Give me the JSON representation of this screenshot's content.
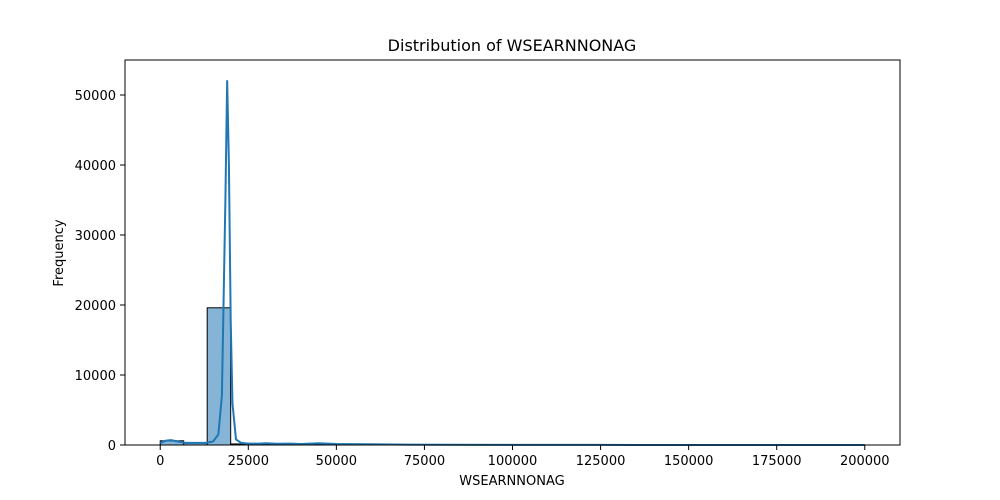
{
  "chart_data": {
    "type": "bar",
    "title": "Distribution of WSEARNNONAG",
    "xlabel": "WSEARNNONAG",
    "ylabel": "Frequency",
    "xlim": [
      -10000,
      210000
    ],
    "ylim": [
      0,
      55000
    ],
    "xticks": [
      0,
      25000,
      50000,
      75000,
      100000,
      125000,
      150000,
      175000,
      200000
    ],
    "yticks": [
      0,
      10000,
      20000,
      30000,
      40000,
      50000
    ],
    "grid": false,
    "bar_color": "#86b4d7",
    "line_color": "#1f77b4",
    "bins": [
      {
        "x0": 0,
        "x1": 6667,
        "count": 600
      },
      {
        "x0": 6667,
        "x1": 13333,
        "count": 300
      },
      {
        "x0": 13333,
        "x1": 20000,
        "count": 19600
      },
      {
        "x0": 20000,
        "x1": 26667,
        "count": 150
      },
      {
        "x0": 26667,
        "x1": 33333,
        "count": 120
      },
      {
        "x0": 33333,
        "x1": 40000,
        "count": 90
      },
      {
        "x0": 40000,
        "x1": 46667,
        "count": 80
      },
      {
        "x0": 46667,
        "x1": 53333,
        "count": 60
      },
      {
        "x0": 53333,
        "x1": 60000,
        "count": 40
      },
      {
        "x0": 60000,
        "x1": 66667,
        "count": 30
      },
      {
        "x0": 66667,
        "x1": 73333,
        "count": 20
      },
      {
        "x0": 73333,
        "x1": 80000,
        "count": 15
      },
      {
        "x0": 80000,
        "x1": 86667,
        "count": 10
      },
      {
        "x0": 86667,
        "x1": 93333,
        "count": 8
      },
      {
        "x0": 93333,
        "x1": 100000,
        "count": 6
      },
      {
        "x0": 100000,
        "x1": 106667,
        "count": 5
      },
      {
        "x0": 106667,
        "x1": 113333,
        "count": 4
      },
      {
        "x0": 113333,
        "x1": 120000,
        "count": 3
      },
      {
        "x0": 120000,
        "x1": 126667,
        "count": 3
      },
      {
        "x0": 126667,
        "x1": 133333,
        "count": 2
      },
      {
        "x0": 133333,
        "x1": 140000,
        "count": 2
      },
      {
        "x0": 140000,
        "x1": 146667,
        "count": 2
      },
      {
        "x0": 146667,
        "x1": 153333,
        "count": 1
      },
      {
        "x0": 153333,
        "x1": 160000,
        "count": 1
      },
      {
        "x0": 160000,
        "x1": 166667,
        "count": 1
      },
      {
        "x0": 166667,
        "x1": 173333,
        "count": 1
      },
      {
        "x0": 173333,
        "x1": 180000,
        "count": 1
      },
      {
        "x0": 180000,
        "x1": 186667,
        "count": 1
      },
      {
        "x0": 186667,
        "x1": 193333,
        "count": 1
      },
      {
        "x0": 193333,
        "x1": 200000,
        "count": 1
      }
    ],
    "kde": {
      "x": [
        0,
        1500,
        3000,
        5000,
        7000,
        9000,
        11000,
        13000,
        15000,
        16500,
        17500,
        18500,
        19000,
        19500,
        20000,
        20500,
        21500,
        23000,
        25000,
        28000,
        30000,
        33000,
        37000,
        40000,
        45000,
        50000,
        55000,
        60000,
        70000,
        80000,
        100000,
        125000,
        150000,
        175000,
        200000
      ],
      "y": [
        300,
        600,
        700,
        500,
        300,
        300,
        300,
        300,
        500,
        1500,
        7000,
        35000,
        52000,
        40000,
        18000,
        6000,
        800,
        300,
        200,
        200,
        250,
        180,
        200,
        150,
        250,
        150,
        120,
        100,
        60,
        40,
        20,
        10,
        5,
        3,
        2
      ]
    }
  }
}
